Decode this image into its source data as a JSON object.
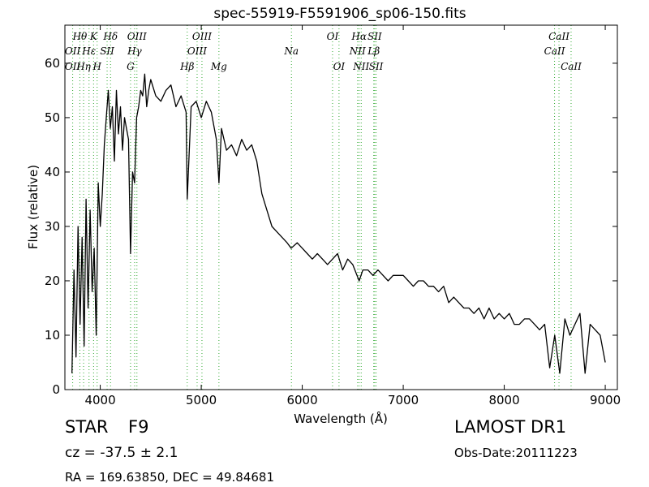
{
  "chart_data": {
    "type": "line",
    "title": "spec-55919-F5591906_sp06-150.fits",
    "xlabel": "Wavelength (Å)",
    "ylabel": "Flux (relative)",
    "xlim": [
      3650,
      9120
    ],
    "ylim": [
      0,
      67
    ],
    "x_ticks": [
      4000,
      5000,
      6000,
      7000,
      8000,
      9000
    ],
    "y_ticks": [
      0,
      10,
      20,
      30,
      40,
      50,
      60
    ],
    "grid": false,
    "series": [
      {
        "color": "#000000",
        "x": [
          3720,
          3740,
          3760,
          3780,
          3800,
          3820,
          3840,
          3860,
          3880,
          3900,
          3920,
          3940,
          3960,
          3980,
          4000,
          4020,
          4040,
          4060,
          4080,
          4100,
          4120,
          4140,
          4160,
          4180,
          4200,
          4220,
          4240,
          4260,
          4280,
          4300,
          4320,
          4340,
          4360,
          4380,
          4400,
          4420,
          4440,
          4460,
          4480,
          4500,
          4550,
          4600,
          4650,
          4700,
          4750,
          4800,
          4850,
          4861,
          4900,
          4950,
          5000,
          5050,
          5100,
          5150,
          5175,
          5200,
          5250,
          5300,
          5350,
          5400,
          5450,
          5500,
          5550,
          5600,
          5650,
          5700,
          5750,
          5800,
          5850,
          5890,
          5950,
          6000,
          6050,
          6100,
          6150,
          6200,
          6250,
          6300,
          6350,
          6400,
          6450,
          6500,
          6563,
          6600,
          6650,
          6700,
          6750,
          6800,
          6850,
          6900,
          6950,
          7000,
          7050,
          7100,
          7150,
          7200,
          7250,
          7300,
          7350,
          7400,
          7450,
          7500,
          7550,
          7600,
          7650,
          7700,
          7750,
          7800,
          7850,
          7900,
          7950,
          8000,
          8050,
          8100,
          8150,
          8200,
          8250,
          8300,
          8350,
          8400,
          8450,
          8500,
          8550,
          8600,
          8650,
          8700,
          8750,
          8800,
          8850,
          8900,
          8950,
          9000
        ],
        "y": [
          3,
          22,
          6,
          30,
          12,
          28,
          8,
          35,
          15,
          33,
          18,
          26,
          10,
          38,
          30,
          36,
          45,
          50,
          55,
          48,
          52,
          42,
          55,
          47,
          52,
          44,
          50,
          48,
          46,
          25,
          40,
          38,
          50,
          52,
          55,
          54,
          58,
          52,
          55,
          57,
          54,
          53,
          55,
          56,
          52,
          54,
          51,
          35,
          52,
          53,
          50,
          53,
          51,
          46,
          38,
          48,
          44,
          45,
          43,
          46,
          44,
          45,
          42,
          36,
          33,
          30,
          29,
          28,
          27,
          26,
          27,
          26,
          25,
          24,
          25,
          24,
          23,
          24,
          25,
          22,
          24,
          23,
          20,
          22,
          22,
          21,
          22,
          21,
          20,
          21,
          21,
          21,
          20,
          19,
          20,
          20,
          19,
          19,
          18,
          19,
          16,
          17,
          16,
          15,
          15,
          14,
          15,
          13,
          15,
          13,
          14,
          13,
          14,
          12,
          12,
          13,
          13,
          12,
          11,
          12,
          4,
          10,
          3,
          13,
          10,
          12,
          14,
          3,
          12,
          11,
          10,
          5
        ]
      }
    ],
    "line_labels": [
      {
        "label": "Hθ",
        "x": 3798,
        "row": 1
      },
      {
        "label": "K",
        "x": 3934,
        "row": 1
      },
      {
        "label": "Hδ",
        "x": 4102,
        "row": 1
      },
      {
        "label": "OIII",
        "x": 4363,
        "row": 1
      },
      {
        "label": "OIII",
        "x": 5007,
        "row": 1
      },
      {
        "label": "OI",
        "x": 6300,
        "row": 1
      },
      {
        "label": "Hα",
        "x": 6563,
        "row": 1
      },
      {
        "label": "SII",
        "x": 6717,
        "row": 1
      },
      {
        "label": "CaII",
        "x": 8542,
        "row": 1
      },
      {
        "label": "OII",
        "x": 3727,
        "row": 2
      },
      {
        "label": "Hε",
        "x": 3889,
        "row": 2
      },
      {
        "label": "SII",
        "x": 4068,
        "row": 2
      },
      {
        "label": "Hγ",
        "x": 4340,
        "row": 2
      },
      {
        "label": "OIII",
        "x": 4959,
        "row": 2
      },
      {
        "label": "Na",
        "x": 5893,
        "row": 2
      },
      {
        "label": "NII",
        "x": 6548,
        "row": 2
      },
      {
        "label": "Lβ",
        "x": 6708,
        "row": 2
      },
      {
        "label": "CaII",
        "x": 8498,
        "row": 2
      },
      {
        "label": "OII",
        "x": 3727,
        "row": 3
      },
      {
        "label": "Hη",
        "x": 3835,
        "row": 3
      },
      {
        "label": "H",
        "x": 3969,
        "row": 3
      },
      {
        "label": "G",
        "x": 4300,
        "row": 3
      },
      {
        "label": "Hβ",
        "x": 4861,
        "row": 3
      },
      {
        "label": "Mg",
        "x": 5175,
        "row": 3
      },
      {
        "label": "OI",
        "x": 6364,
        "row": 3
      },
      {
        "label": "NII",
        "x": 6584,
        "row": 3
      },
      {
        "label": "SII",
        "x": 6731,
        "row": 3
      },
      {
        "label": "CaII",
        "x": 8662,
        "row": 3
      }
    ],
    "line_marker_color": "#33aa33"
  },
  "info": {
    "object_class": "STAR",
    "subclass": "F9",
    "survey": "LAMOST DR1",
    "redshift": "cz = -37.5 ± 2.1",
    "obs_date": "Obs-Date:20111223",
    "coords": "RA = 169.63850, DEC = 49.84681"
  }
}
